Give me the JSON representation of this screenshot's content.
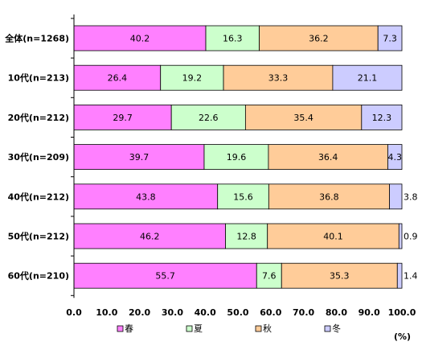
{
  "chart_data": {
    "type": "bar",
    "orientation": "horizontal",
    "stacked": true,
    "categories": [
      "全体(n=1268)",
      "10代(n=213)",
      "20代(n=212)",
      "30代(n=209)",
      "40代(n=212)",
      "50代(n=212)",
      "60代(n=210)"
    ],
    "series": [
      {
        "name": "春",
        "color": "#ff80ff",
        "values": [
          40.2,
          26.4,
          29.7,
          39.7,
          43.8,
          46.2,
          55.7
        ]
      },
      {
        "name": "夏",
        "color": "#ccffcc",
        "values": [
          16.3,
          19.2,
          22.6,
          19.6,
          15.6,
          12.8,
          7.6
        ]
      },
      {
        "name": "秋",
        "color": "#ffcc99",
        "values": [
          36.2,
          33.3,
          35.4,
          36.4,
          36.8,
          40.1,
          35.3
        ]
      },
      {
        "name": "冬",
        "color": "#ccccff",
        "values": [
          7.3,
          21.1,
          12.3,
          4.3,
          3.8,
          0.9,
          1.4
        ]
      }
    ],
    "xlim": [
      0,
      100
    ],
    "xticks": [
      "0.0",
      "10.0",
      "20.0",
      "30.0",
      "40.0",
      "50.0",
      "60.0",
      "70.0",
      "80.0",
      "90.0",
      "100.0"
    ],
    "unit_label": "(%)",
    "grid": false,
    "legend_position": "bottom",
    "title": "",
    "xlabel": "",
    "ylabel": ""
  }
}
